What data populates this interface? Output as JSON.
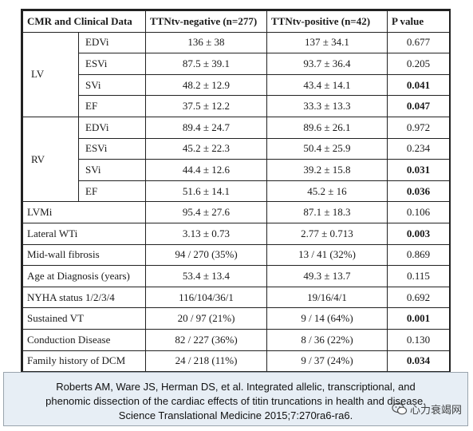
{
  "table": {
    "headers": [
      "CMR and Clinical Data",
      "TTNtv-negative (n=277)",
      "TTNtv-positive (n=42)",
      "P value"
    ],
    "groups": [
      {
        "label": "LV",
        "rows": [
          {
            "name": "EDVi",
            "neg": "136 ± 38",
            "pos": "137 ± 34.1",
            "p": "0.677",
            "sig": false
          },
          {
            "name": "ESVi",
            "neg": "87.5 ± 39.1",
            "pos": "93.7 ± 36.4",
            "p": "0.205",
            "sig": false
          },
          {
            "name": "SVi",
            "neg": "48.2 ± 12.9",
            "pos": "43.4 ± 14.1",
            "p": "0.041",
            "sig": true
          },
          {
            "name": "EF",
            "neg": "37.5 ± 12.2",
            "pos": "33.3 ± 13.3",
            "p": "0.047",
            "sig": true
          }
        ]
      },
      {
        "label": "RV",
        "rows": [
          {
            "name": "EDVi",
            "neg": "89.4 ± 24.7",
            "pos": "89.6 ± 26.1",
            "p": "0.972",
            "sig": false
          },
          {
            "name": "ESVi",
            "neg": "45.2 ± 22.3",
            "pos": "50.4 ± 25.9",
            "p": "0.234",
            "sig": false
          },
          {
            "name": "SVi",
            "neg": "44.4 ± 12.6",
            "pos": "39.2 ± 15.8",
            "p": "0.031",
            "sig": true
          },
          {
            "name": "EF",
            "neg": "51.6 ± 14.1",
            "pos": "45.2 ± 16",
            "p": "0.036",
            "sig": true
          }
        ]
      }
    ],
    "rows": [
      {
        "name": "LVMi",
        "neg": "95.4 ± 27.6",
        "pos": "87.1 ± 18.3",
        "p": "0.106",
        "sig": false
      },
      {
        "name": "Lateral WTi",
        "neg": "3.13 ± 0.73",
        "pos": "2.77 ± 0.713",
        "p": "0.003",
        "sig": true
      },
      {
        "name": "Mid-wall fibrosis",
        "neg": "94 / 270 (35%)",
        "pos": "13 / 41 (32%)",
        "p": "0.869",
        "sig": false
      },
      {
        "name": "Age at Diagnosis (years)",
        "neg": "53.4 ± 13.4",
        "pos": "49.3 ± 13.7",
        "p": "0.115",
        "sig": false
      },
      {
        "name": "NYHA status 1/2/3/4",
        "neg": "116/104/36/1",
        "pos": "19/16/4/1",
        "p": "0.692",
        "sig": false
      },
      {
        "name": "Sustained VT",
        "neg": "20 / 97 (21%)",
        "pos": "9 / 14 (64%)",
        "p": "0.001",
        "sig": true
      },
      {
        "name": "Conduction Disease",
        "neg": "82 / 227 (36%)",
        "pos": "8 / 36 (22%)",
        "p": "0.130",
        "sig": false
      },
      {
        "name": "Family history of DCM",
        "neg": "24 / 218 (11%)",
        "pos": "9 / 37 (24%)",
        "p": "0.034",
        "sig": true
      }
    ]
  },
  "citation": {
    "line1": "Roberts AM, Ware JS, Herman DS, et al. Integrated allelic, transcriptional, and",
    "line2": "phenomic dissection of the cardiac effects of titin truncations in health and disease.",
    "line3": "Science Translational Medicine 2015;7:270ra6-ra6."
  },
  "watermark": {
    "text": "心力衰竭网",
    "icon": "wechat-icon"
  },
  "colors": {
    "citation_bg": "#e7eef5",
    "border": "#222222"
  }
}
